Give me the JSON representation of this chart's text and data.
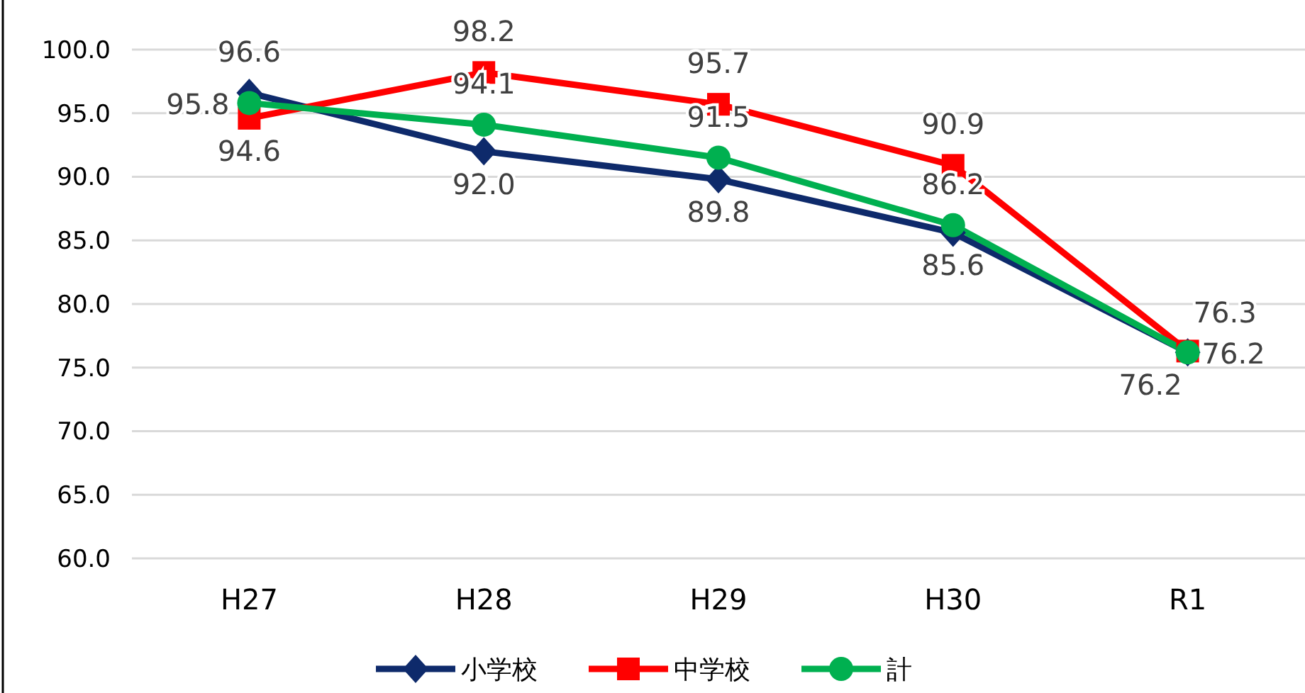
{
  "chart_data": {
    "type": "line",
    "categories": [
      "H27",
      "H28",
      "H29",
      "H30",
      "R1"
    ],
    "series": [
      {
        "name": "小学校",
        "color": "#0e2a6b",
        "marker": "diamond",
        "values": [
          96.6,
          92.0,
          89.8,
          85.6,
          76.2
        ],
        "value_labels": [
          "96.6",
          "92.0",
          "89.8",
          "85.6",
          "76.2"
        ]
      },
      {
        "name": "中学校",
        "color": "#ff0000",
        "marker": "square",
        "values": [
          94.6,
          98.2,
          95.7,
          90.9,
          76.3
        ],
        "value_labels": [
          "94.6",
          "98.2",
          "95.7",
          "90.9",
          "76.3"
        ]
      },
      {
        "name": "計",
        "color": "#00b050",
        "marker": "circle",
        "values": [
          95.8,
          94.1,
          91.5,
          86.2,
          76.2
        ],
        "value_labels": [
          "95.8",
          "94.1",
          "91.5",
          "86.2",
          "76.2"
        ]
      }
    ],
    "ylim": [
      60,
      100
    ],
    "yticks": [
      {
        "value": 60,
        "label": "60.0"
      },
      {
        "value": 65,
        "label": "65.0"
      },
      {
        "value": 70,
        "label": "70.0"
      },
      {
        "value": 75,
        "label": "75.0"
      },
      {
        "value": 80,
        "label": "80.0"
      },
      {
        "value": 85,
        "label": "85.0"
      },
      {
        "value": 90,
        "label": "90.0"
      },
      {
        "value": 95,
        "label": "95.0"
      },
      {
        "value": 100,
        "label": "100.0"
      }
    ],
    "grid": "y",
    "legend": "bottom",
    "line_style": "solid"
  }
}
